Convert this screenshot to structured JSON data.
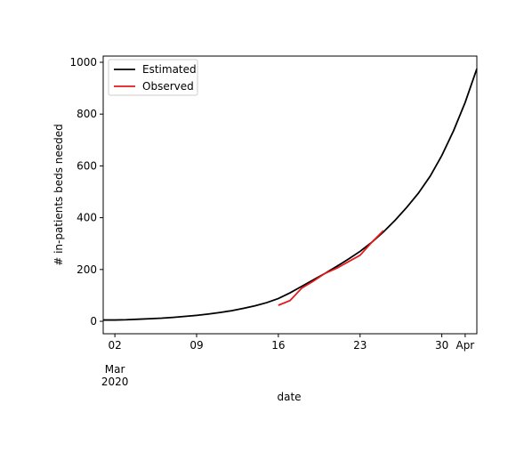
{
  "chart_data": {
    "type": "line",
    "xlabel": "date",
    "ylabel": "# in-patients beds needed",
    "x": [
      "2020-03-01",
      "2020-03-02",
      "2020-03-03",
      "2020-03-04",
      "2020-03-05",
      "2020-03-06",
      "2020-03-07",
      "2020-03-08",
      "2020-03-09",
      "2020-03-10",
      "2020-03-11",
      "2020-03-12",
      "2020-03-13",
      "2020-03-14",
      "2020-03-15",
      "2020-03-16",
      "2020-03-17",
      "2020-03-18",
      "2020-03-19",
      "2020-03-20",
      "2020-03-21",
      "2020-03-22",
      "2020-03-23",
      "2020-03-24",
      "2020-03-25",
      "2020-03-26",
      "2020-03-27",
      "2020-03-28",
      "2020-03-29",
      "2020-03-30",
      "2020-03-31",
      "2020-04-01",
      "2020-04-02"
    ],
    "series": [
      {
        "name": "Estimated",
        "color": "#000000",
        "values": [
          5,
          5,
          6,
          8,
          10,
          12,
          15,
          19,
          23,
          28,
          34,
          41,
          50,
          60,
          72,
          88,
          110,
          135,
          160,
          185,
          212,
          240,
          270,
          305,
          345,
          390,
          440,
          495,
          560,
          640,
          735,
          845,
          975
        ]
      },
      {
        "name": "Observed",
        "color": "#e41a1c",
        "values": [
          null,
          null,
          null,
          null,
          null,
          null,
          null,
          null,
          null,
          null,
          null,
          null,
          null,
          null,
          null,
          62,
          80,
          128,
          155,
          185,
          205,
          230,
          255,
          305,
          350,
          null,
          null,
          null,
          null,
          null,
          null,
          null,
          null
        ]
      }
    ],
    "xlim": [
      "2020-03-01",
      "2020-04-02"
    ],
    "xticks": [
      {
        "value": "2020-03-02",
        "label": "02"
      },
      {
        "value": "2020-03-09",
        "label": "09"
      },
      {
        "value": "2020-03-16",
        "label": "16"
      },
      {
        "value": "2020-03-23",
        "label": "23"
      },
      {
        "value": "2020-03-30",
        "label": "30"
      },
      {
        "value": "2020-04-01",
        "label": "Apr"
      }
    ],
    "xticks_secondary": [
      {
        "value": "2020-03-02",
        "label": "Mar\n2020"
      }
    ],
    "ylim": [
      -48,
      1024
    ],
    "yticks": [
      0,
      200,
      400,
      600,
      800,
      1000
    ],
    "legend": "upper left"
  }
}
